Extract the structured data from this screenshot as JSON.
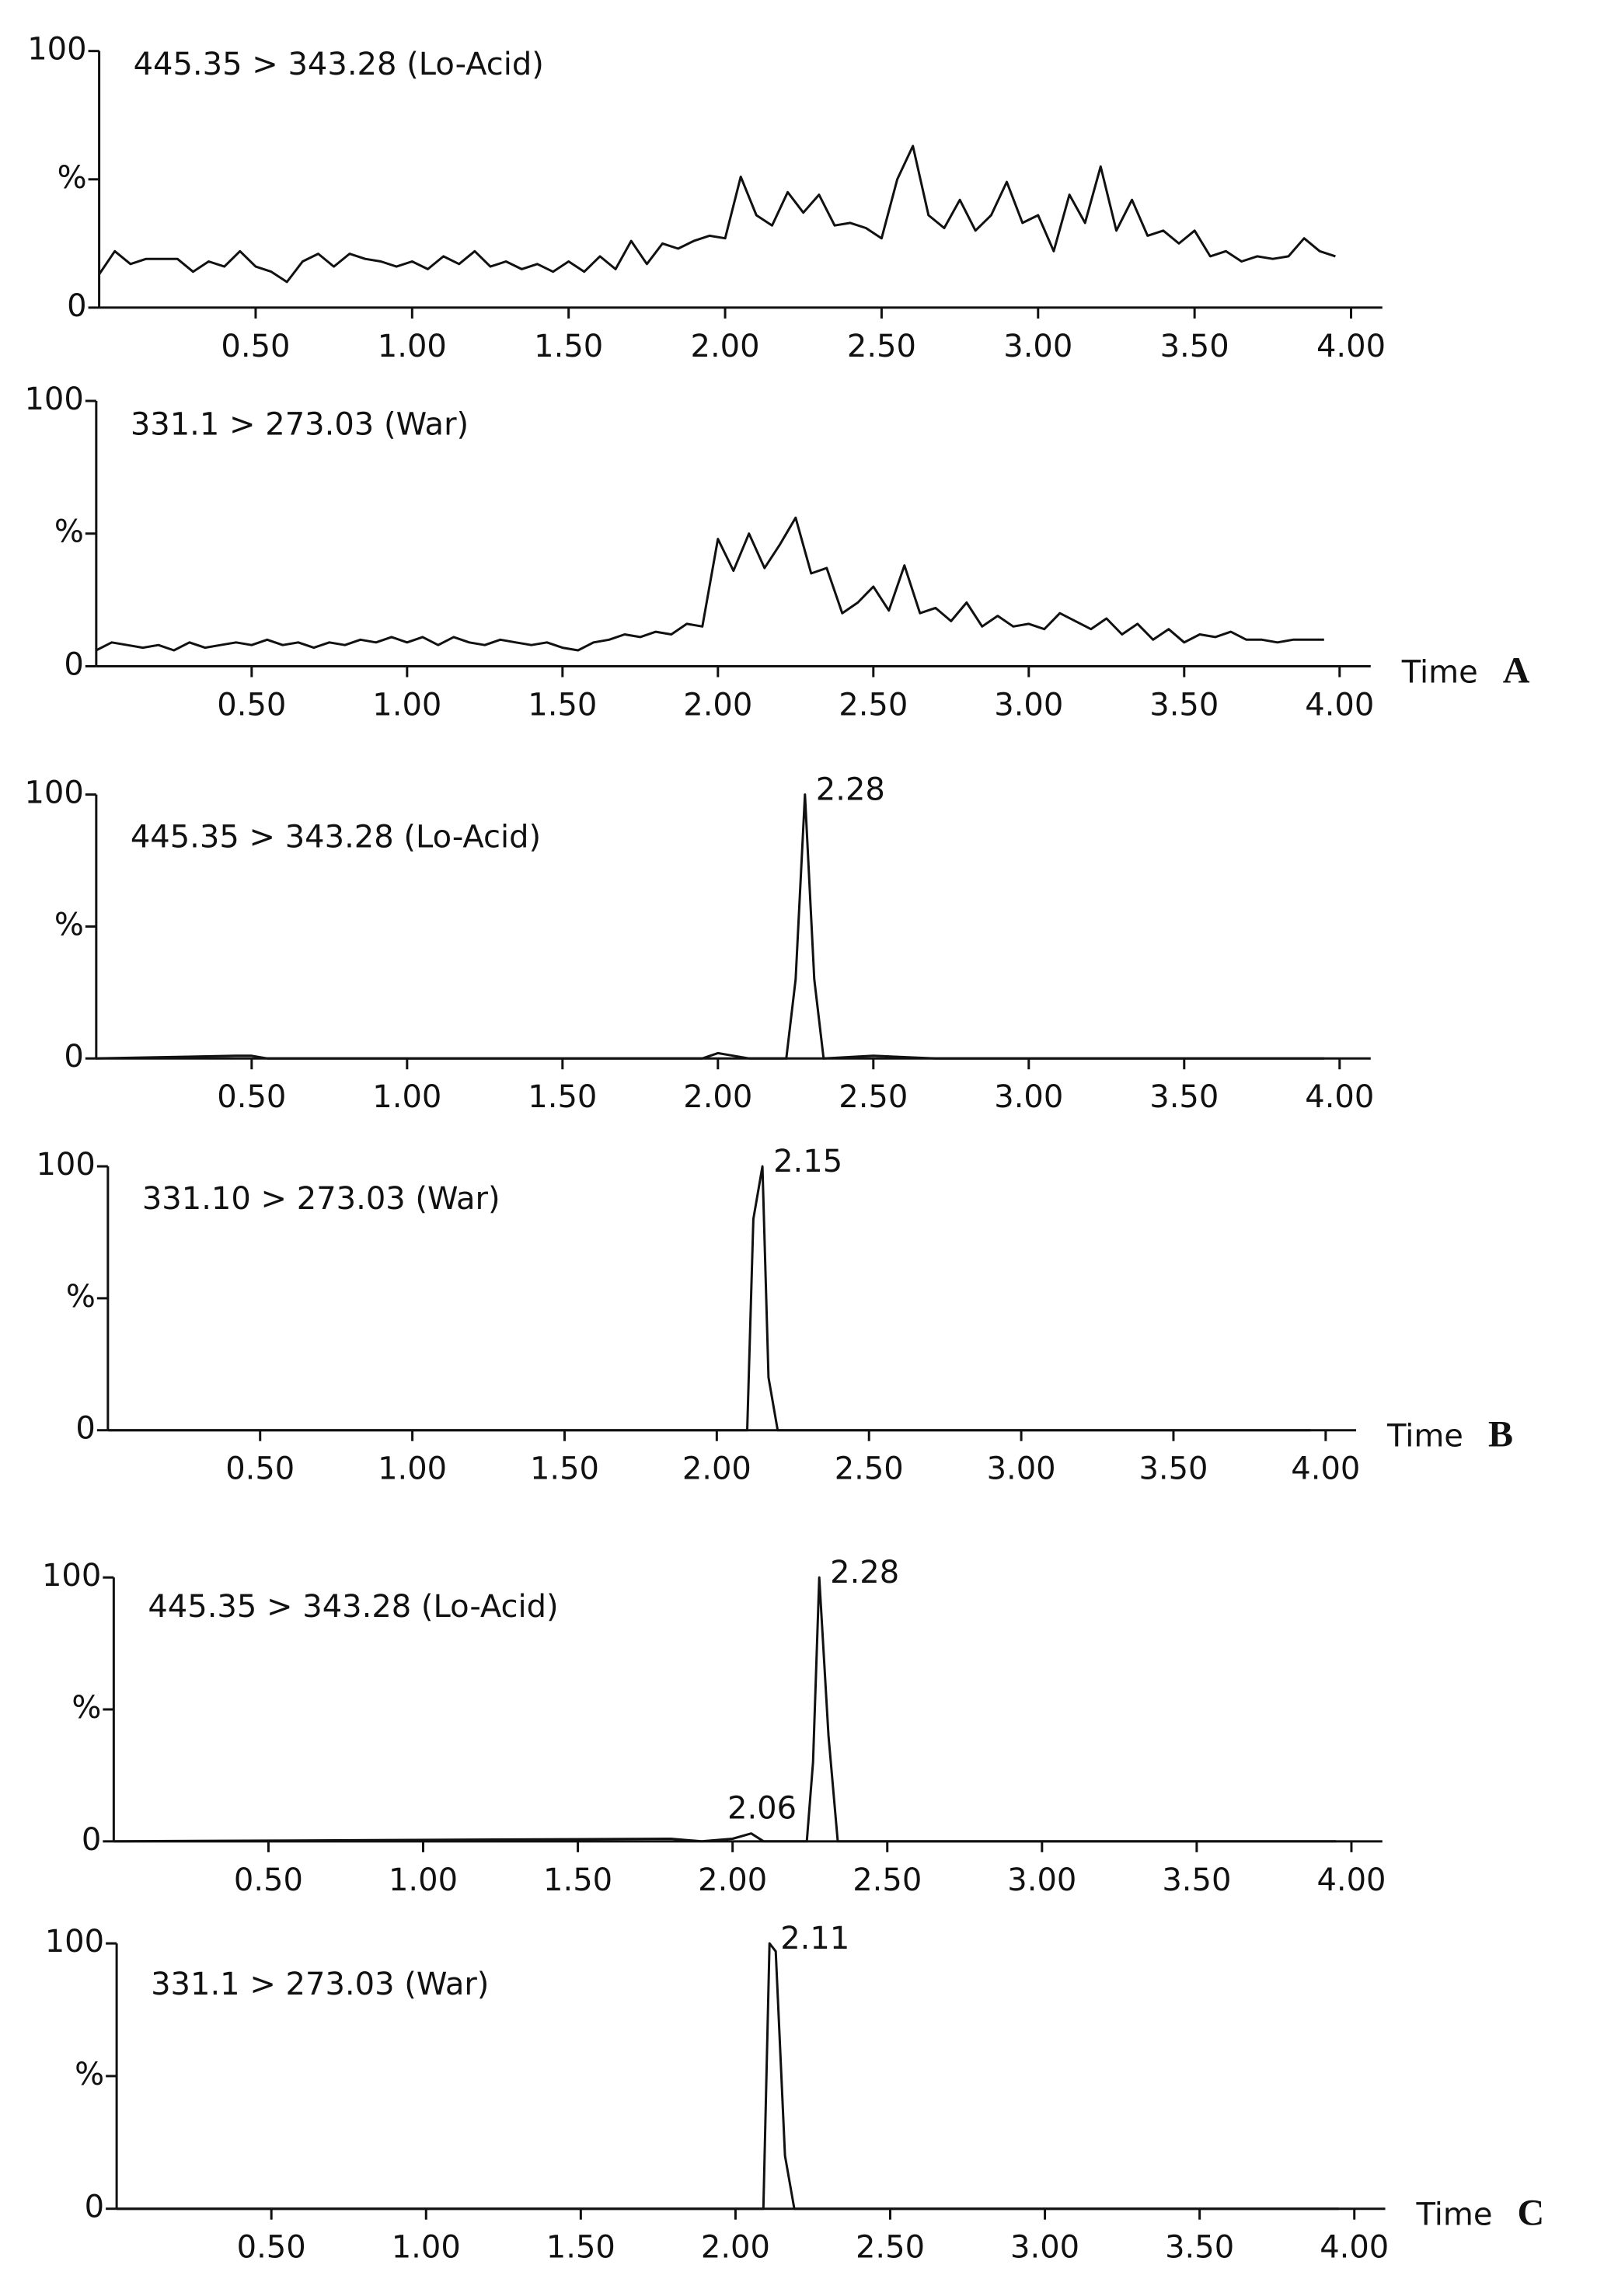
{
  "chart_data": [
    {
      "type": "line",
      "title": "445.35 > 343.28  (Lo-Acid)",
      "color": "#111111",
      "x": [
        0.0,
        0.05,
        0.1,
        0.15,
        0.2,
        0.25,
        0.3,
        0.35,
        0.4,
        0.45,
        0.5,
        0.55,
        0.6,
        0.65,
        0.7,
        0.75,
        0.8,
        0.85,
        0.9,
        0.95,
        1.0,
        1.05,
        1.1,
        1.15,
        1.2,
        1.25,
        1.3,
        1.35,
        1.4,
        1.45,
        1.5,
        1.55,
        1.6,
        1.65,
        1.7,
        1.75,
        1.8,
        1.85,
        1.9,
        1.95,
        2.0,
        2.05,
        2.1,
        2.15,
        2.2,
        2.25,
        2.3,
        2.35,
        2.4,
        2.45,
        2.5,
        2.55,
        2.6,
        2.65,
        2.7,
        2.75,
        2.8,
        2.85,
        2.9,
        2.95,
        3.0,
        3.05,
        3.1,
        3.15,
        3.2,
        3.25,
        3.3,
        3.35,
        3.4,
        3.45,
        3.5,
        3.55,
        3.6,
        3.65,
        3.7,
        3.75,
        3.8,
        3.85,
        3.9,
        3.95
      ],
      "values": [
        13,
        22,
        17,
        19,
        19,
        19,
        14,
        18,
        16,
        22,
        16,
        14,
        10,
        18,
        21,
        16,
        21,
        19,
        18,
        16,
        18,
        15,
        20,
        17,
        22,
        16,
        18,
        15,
        17,
        14,
        18,
        14,
        20,
        15,
        26,
        17,
        25,
        23,
        26,
        28,
        27,
        51,
        36,
        32,
        45,
        37,
        44,
        32,
        33,
        31,
        27,
        50,
        63,
        36,
        31,
        42,
        30,
        36,
        49,
        33,
        36,
        22,
        44,
        33,
        55,
        30,
        42,
        28,
        30,
        25,
        30,
        20,
        22,
        18,
        20,
        19,
        20,
        27,
        22,
        20
      ],
      "xlim": [
        0,
        4.1
      ],
      "ylim": [
        0,
        100
      ],
      "xticks": [
        {
          "value": 0.5,
          "label": "0.50"
        },
        {
          "value": 1,
          "label": "1.00"
        },
        {
          "value": 1.5,
          "label": "1.50"
        },
        {
          "value": 2,
          "label": "2.00"
        },
        {
          "value": 2.5,
          "label": "2.50"
        },
        {
          "value": 3,
          "label": "3.00"
        },
        {
          "value": 3.5,
          "label": "3.50"
        },
        {
          "value": 4,
          "label": "4.00"
        }
      ],
      "yticks": [
        0,
        {
          "value": 50,
          "label": "%"
        },
        100
      ]
    },
    {
      "type": "line",
      "title": "331.1 > 273.03  (War)",
      "color": "#111111",
      "x": [
        0.0,
        0.05,
        0.1,
        0.15,
        0.2,
        0.25,
        0.3,
        0.35,
        0.4,
        0.45,
        0.5,
        0.55,
        0.6,
        0.65,
        0.7,
        0.75,
        0.8,
        0.85,
        0.9,
        0.95,
        1.0,
        1.05,
        1.1,
        1.15,
        1.2,
        1.25,
        1.3,
        1.35,
        1.4,
        1.45,
        1.5,
        1.55,
        1.6,
        1.65,
        1.7,
        1.75,
        1.8,
        1.85,
        1.9,
        1.95,
        2.0,
        2.05,
        2.1,
        2.15,
        2.2,
        2.25,
        2.3,
        2.35,
        2.4,
        2.45,
        2.5,
        2.55,
        2.6,
        2.65,
        2.7,
        2.75,
        2.8,
        2.85,
        2.9,
        2.95,
        3.0,
        3.05,
        3.1,
        3.15,
        3.2,
        3.25,
        3.3,
        3.35,
        3.4,
        3.45,
        3.5,
        3.55,
        3.6,
        3.65,
        3.7,
        3.75,
        3.8,
        3.85,
        3.9,
        3.95
      ],
      "values": [
        6,
        9,
        8,
        7,
        8,
        6,
        9,
        7,
        8,
        9,
        8,
        10,
        8,
        9,
        7,
        9,
        8,
        10,
        9,
        11,
        9,
        11,
        8,
        11,
        9,
        8,
        10,
        9,
        8,
        9,
        7,
        6,
        9,
        10,
        12,
        11,
        13,
        12,
        16,
        15,
        48,
        36,
        50,
        37,
        46,
        56,
        35,
        37,
        20,
        24,
        30,
        21,
        38,
        20,
        22,
        17,
        24,
        15,
        19,
        15,
        16,
        14,
        20,
        17,
        14,
        18,
        12,
        16,
        10,
        14,
        9,
        12,
        11,
        13,
        10,
        10,
        9,
        10,
        10,
        10
      ],
      "xlim": [
        0,
        4.1
      ],
      "ylim": [
        0,
        100
      ],
      "xticks": [
        {
          "value": 0.5,
          "label": "0.50"
        },
        {
          "value": 1,
          "label": "1.00"
        },
        {
          "value": 1.5,
          "label": "1.50"
        },
        {
          "value": 2,
          "label": "2.00"
        },
        {
          "value": 2.5,
          "label": "2.50"
        },
        {
          "value": 3,
          "label": "3.00"
        },
        {
          "value": 3.5,
          "label": "3.50"
        },
        {
          "value": 4,
          "label": "4.00"
        }
      ],
      "yticks": [
        0,
        {
          "value": 50,
          "label": "%"
        },
        100
      ],
      "x_label": "Time",
      "panel_label": "A"
    },
    {
      "type": "line",
      "title": "445.35 > 343.28  (Lo-Acid)",
      "color": "#111111",
      "x": [
        0.0,
        0.45,
        0.5,
        0.55,
        1.95,
        2.0,
        2.05,
        2.1,
        2.22,
        2.25,
        2.28,
        2.31,
        2.34,
        2.5,
        2.7,
        3.95
      ],
      "values": [
        0,
        1,
        1,
        0,
        0,
        2,
        1,
        0,
        0,
        30,
        100,
        30,
        0,
        1,
        0,
        0
      ],
      "xlim": [
        0,
        4.1
      ],
      "ylim": [
        0,
        100
      ],
      "xticks": [
        {
          "value": 0.5,
          "label": "0.50"
        },
        {
          "value": 1,
          "label": "1.00"
        },
        {
          "value": 1.5,
          "label": "1.50"
        },
        {
          "value": 2,
          "label": "2.00"
        },
        {
          "value": 2.5,
          "label": "2.50"
        },
        {
          "value": 3,
          "label": "3.00"
        },
        {
          "value": 3.5,
          "label": "3.50"
        },
        {
          "value": 4,
          "label": "4.00"
        }
      ],
      "yticks": [
        0,
        {
          "value": 50,
          "label": "%"
        },
        100
      ],
      "annotations": [
        {
          "text": "2.28",
          "x": 2.28,
          "y": 100
        }
      ]
    },
    {
      "type": "line",
      "title": "331.10 > 273.03  (War)",
      "color": "#111111",
      "x": [
        0.0,
        2.1,
        2.12,
        2.15,
        2.17,
        2.2,
        3.95
      ],
      "values": [
        0,
        0,
        80,
        100,
        20,
        0,
        0
      ],
      "xlim": [
        0,
        4.1
      ],
      "ylim": [
        0,
        100
      ],
      "xticks": [
        {
          "value": 0.5,
          "label": "0.50"
        },
        {
          "value": 1,
          "label": "1.00"
        },
        {
          "value": 1.5,
          "label": "1.50"
        },
        {
          "value": 2,
          "label": "2.00"
        },
        {
          "value": 2.5,
          "label": "2.50"
        },
        {
          "value": 3,
          "label": "3.00"
        },
        {
          "value": 3.5,
          "label": "3.50"
        },
        {
          "value": 4,
          "label": "4.00"
        }
      ],
      "yticks": [
        0,
        {
          "value": 50,
          "label": "%"
        },
        100
      ],
      "annotations": [
        {
          "text": "2.15",
          "x": 2.15,
          "y": 100
        }
      ],
      "x_label": "Time",
      "panel_label": "B"
    },
    {
      "type": "line",
      "title": "445.35 > 343.28  (Lo-Acid)",
      "color": "#111111",
      "x": [
        0.0,
        1.8,
        1.9,
        2.0,
        2.06,
        2.1,
        2.24,
        2.26,
        2.28,
        2.31,
        2.34,
        3.95
      ],
      "values": [
        0,
        1,
        0,
        1,
        3,
        0,
        0,
        30,
        100,
        40,
        0,
        0
      ],
      "xlim": [
        0,
        4.1
      ],
      "ylim": [
        0,
        100
      ],
      "xticks": [
        {
          "value": 0.5,
          "label": "0.50"
        },
        {
          "value": 1,
          "label": "1.00"
        },
        {
          "value": 1.5,
          "label": "1.50"
        },
        {
          "value": 2,
          "label": "2.00"
        },
        {
          "value": 2.5,
          "label": "2.50"
        },
        {
          "value": 3,
          "label": "3.00"
        },
        {
          "value": 3.5,
          "label": "3.50"
        },
        {
          "value": 4,
          "label": "4.00"
        }
      ],
      "yticks": [
        0,
        {
          "value": 50,
          "label": "%"
        },
        100
      ],
      "annotations": [
        {
          "text": "2.28",
          "x": 2.28,
          "y": 100
        },
        {
          "text": "2.06",
          "x": 2.06,
          "y": 3
        }
      ]
    },
    {
      "type": "line",
      "title": "331.1 > 273.03  (War)",
      "color": "#111111",
      "x": [
        0.0,
        2.09,
        2.11,
        2.13,
        2.16,
        2.19,
        3.95
      ],
      "values": [
        0,
        0,
        100,
        97,
        20,
        0,
        0
      ],
      "xlim": [
        0,
        4.1
      ],
      "ylim": [
        0,
        100
      ],
      "xticks": [
        {
          "value": 0.5,
          "label": "0.50"
        },
        {
          "value": 1,
          "label": "1.00"
        },
        {
          "value": 1.5,
          "label": "1.50"
        },
        {
          "value": 2,
          "label": "2.00"
        },
        {
          "value": 2.5,
          "label": "2.50"
        },
        {
          "value": 3,
          "label": "3.00"
        },
        {
          "value": 3.5,
          "label": "3.50"
        },
        {
          "value": 4,
          "label": "4.00"
        }
      ],
      "yticks": [
        0,
        {
          "value": 50,
          "label": "%"
        },
        100
      ],
      "annotations": [
        {
          "text": "2.11",
          "x": 2.11,
          "y": 100
        }
      ],
      "x_label": "Time",
      "panel_label": "C"
    }
  ]
}
